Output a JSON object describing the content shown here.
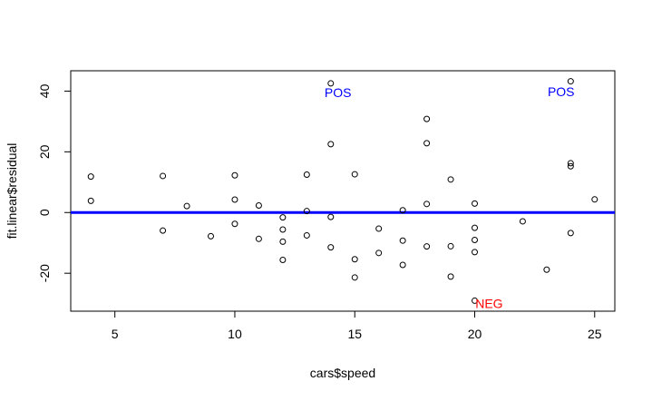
{
  "chart_data": {
    "type": "scatter",
    "title": "",
    "xlabel": "cars$speed",
    "ylabel": "fit.linear$residual",
    "xlim": [
      3.16,
      25.84
    ],
    "ylim": [
      -32.5,
      46.7
    ],
    "x_ticks": [
      5,
      10,
      15,
      20,
      25
    ],
    "y_ticks": [
      -20,
      0,
      20,
      40
    ],
    "x_tick_labels": [
      "5",
      "10",
      "15",
      "20",
      "25"
    ],
    "y_tick_labels": [
      "-20",
      "0",
      "20",
      "40"
    ],
    "hline": {
      "y": 0,
      "color": "#0000ff"
    },
    "point_color": "#000000",
    "points": [
      {
        "x": 4,
        "y": 3.85
      },
      {
        "x": 4,
        "y": 11.85
      },
      {
        "x": 7,
        "y": -5.95
      },
      {
        "x": 7,
        "y": 12.05
      },
      {
        "x": 8,
        "y": 2.12
      },
      {
        "x": 9,
        "y": -7.81
      },
      {
        "x": 10,
        "y": -3.74
      },
      {
        "x": 10,
        "y": 4.26
      },
      {
        "x": 10,
        "y": 12.26
      },
      {
        "x": 11,
        "y": -8.68
      },
      {
        "x": 11,
        "y": 2.32
      },
      {
        "x": 12,
        "y": -15.61
      },
      {
        "x": 12,
        "y": -9.61
      },
      {
        "x": 12,
        "y": -5.61
      },
      {
        "x": 12,
        "y": -1.61
      },
      {
        "x": 13,
        "y": -7.53
      },
      {
        "x": 13,
        "y": 0.47
      },
      {
        "x": 13,
        "y": 12.47
      },
      {
        "x": 14,
        "y": -11.46
      },
      {
        "x": 14,
        "y": -1.46
      },
      {
        "x": 14,
        "y": 22.54
      },
      {
        "x": 14,
        "y": 42.54
      },
      {
        "x": 15,
        "y": -21.39
      },
      {
        "x": 15,
        "y": -15.39
      },
      {
        "x": 15,
        "y": 12.61
      },
      {
        "x": 16,
        "y": -13.32
      },
      {
        "x": 16,
        "y": -5.32
      },
      {
        "x": 17,
        "y": -17.25
      },
      {
        "x": 17,
        "y": -9.25
      },
      {
        "x": 17,
        "y": 0.75
      },
      {
        "x": 18,
        "y": -11.18
      },
      {
        "x": 18,
        "y": 2.82
      },
      {
        "x": 18,
        "y": 22.82
      },
      {
        "x": 18,
        "y": 30.82
      },
      {
        "x": 19,
        "y": -21.11
      },
      {
        "x": 19,
        "y": -11.11
      },
      {
        "x": 19,
        "y": 10.89
      },
      {
        "x": 20,
        "y": -29.04
      },
      {
        "x": 20,
        "y": -13.04
      },
      {
        "x": 20,
        "y": -9.04
      },
      {
        "x": 20,
        "y": -5.04
      },
      {
        "x": 20,
        "y": 2.96
      },
      {
        "x": 22,
        "y": -2.9
      },
      {
        "x": 23,
        "y": -18.83
      },
      {
        "x": 24,
        "y": -6.76
      },
      {
        "x": 24,
        "y": 15.24
      },
      {
        "x": 24,
        "y": 16.24
      },
      {
        "x": 24,
        "y": 43.24
      },
      {
        "x": 25,
        "y": 4.32
      }
    ],
    "annotations": [
      {
        "text": "POS",
        "x": 14.3,
        "y": 39.5,
        "color": "#0000ff"
      },
      {
        "text": "POS",
        "x": 23.6,
        "y": 39.8,
        "color": "#0000ff"
      },
      {
        "text": "NEG",
        "x": 20.6,
        "y": -30.0,
        "color": "#ff0000"
      }
    ]
  }
}
